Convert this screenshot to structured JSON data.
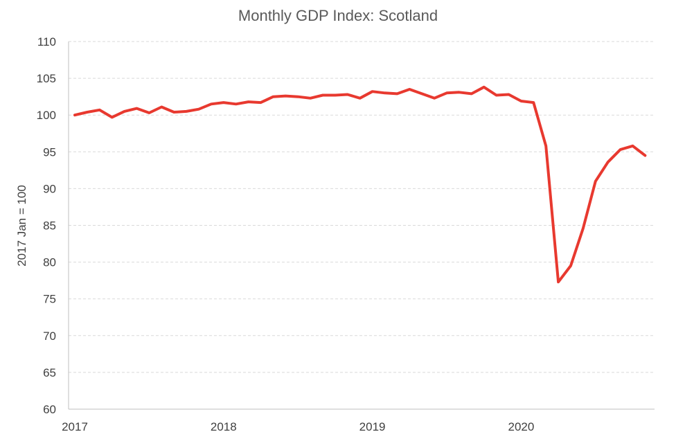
{
  "chart_data": {
    "type": "line",
    "title": "Monthly GDP Index: Scotland",
    "xlabel": "",
    "ylabel": "2017 Jan = 100",
    "ylim": [
      60,
      110
    ],
    "y_ticks": [
      60,
      65,
      70,
      75,
      80,
      85,
      90,
      95,
      100,
      105,
      110
    ],
    "x_tick_labels": [
      "2017",
      "2018",
      "2019",
      "2020"
    ],
    "grid": "horizontal dashed",
    "legend": "none",
    "line_color": "#e8392f",
    "series": [
      {
        "x": [
          "2017-01",
          "2017-02",
          "2017-03",
          "2017-04",
          "2017-05",
          "2017-06",
          "2017-07",
          "2017-08",
          "2017-09",
          "2017-10",
          "2017-11",
          "2017-12",
          "2018-01",
          "2018-02",
          "2018-03",
          "2018-04",
          "2018-05",
          "2018-06",
          "2018-07",
          "2018-08",
          "2018-09",
          "2018-10",
          "2018-11",
          "2018-12",
          "2019-01",
          "2019-02",
          "2019-03",
          "2019-04",
          "2019-05",
          "2019-06",
          "2019-07",
          "2019-08",
          "2019-09",
          "2019-10",
          "2019-11",
          "2019-12",
          "2020-01",
          "2020-02",
          "2020-03",
          "2020-04",
          "2020-05",
          "2020-06",
          "2020-07",
          "2020-08",
          "2020-09",
          "2020-10",
          "2020-11"
        ],
        "values": [
          100.0,
          100.4,
          100.7,
          99.7,
          100.5,
          100.9,
          100.3,
          101.1,
          100.4,
          100.5,
          100.8,
          101.5,
          101.7,
          101.5,
          101.8,
          101.7,
          102.5,
          102.6,
          102.5,
          102.3,
          102.7,
          102.7,
          102.8,
          102.3,
          103.2,
          103.0,
          102.9,
          103.5,
          102.9,
          102.3,
          103.0,
          103.1,
          102.9,
          103.8,
          102.7,
          102.8,
          101.9,
          101.7,
          95.8,
          77.3,
          79.5,
          84.6,
          91.0,
          93.6,
          95.3,
          95.8,
          94.5
        ]
      }
    ]
  }
}
